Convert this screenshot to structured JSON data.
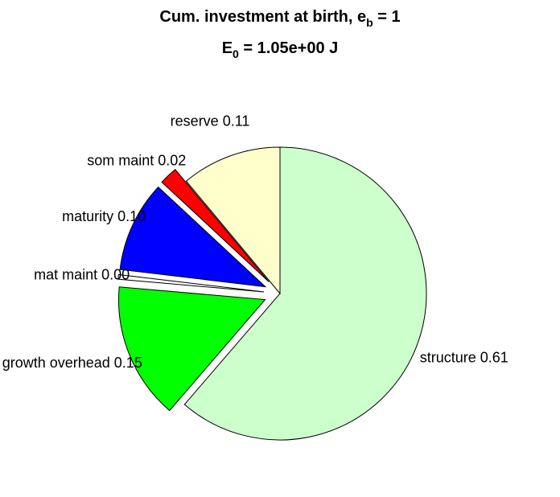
{
  "chart_data": {
    "type": "pie",
    "title_main": "Cum. investment at birth, e",
    "title_sub": "b",
    "title_tail": " = 1",
    "title2_main": "E",
    "title2_sub": "0",
    "title2_tail": " = 1.05e+00 J",
    "slices": [
      {
        "label": "structure 0.61",
        "value": 0.61,
        "color": "#ccffcc",
        "explode": false
      },
      {
        "label": "growth overhead 0.15",
        "value": 0.15,
        "color": "#00ff00",
        "explode": true
      },
      {
        "label": "mat maint 0.00",
        "value": 0.005,
        "color": "#ffffff",
        "explode": true
      },
      {
        "label": "maturity 0.10",
        "value": 0.1,
        "color": "#0000ff",
        "explode": true
      },
      {
        "label": "som maint 0.02",
        "value": 0.02,
        "color": "#ff0000",
        "explode": true
      },
      {
        "label": "reserve 0.11",
        "value": 0.11,
        "color": "#ffffcc",
        "explode": false
      }
    ]
  }
}
